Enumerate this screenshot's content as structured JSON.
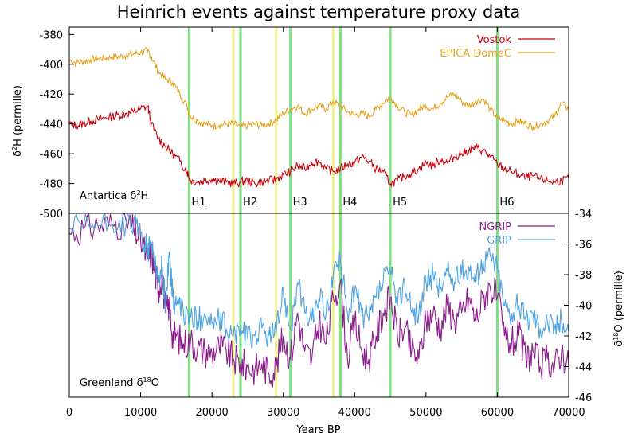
{
  "chart_data": {
    "type": "line",
    "title": "Heinrich events against temperature proxy data",
    "xlabel": "Years BP",
    "xlim": [
      0,
      70000
    ],
    "xticks": [
      0,
      10000,
      20000,
      30000,
      40000,
      50000,
      60000,
      70000
    ],
    "panels": [
      {
        "label_text": "Antartica δ",
        "label_sup": "2",
        "label_suffix": "H",
        "ylabel_sup": "2",
        "ylabel_text": "H (permille)",
        "ylabel_prefix": "δ",
        "ylim": [
          -500,
          -375
        ],
        "yticks": [
          -500,
          -480,
          -460,
          -440,
          -420,
          -400,
          -380
        ],
        "legend_position": "top-right",
        "series": [
          {
            "name": "Vostok",
            "color": "#c8000a",
            "x": [
              0,
              1000,
              2000,
              3000,
              4000,
              5000,
              6000,
              7000,
              8000,
              9000,
              10000,
              11000,
              11500,
              12500,
              13500,
              14500,
              15500,
              16500,
              17000,
              18000,
              19000,
              20000,
              21000,
              22000,
              23000,
              24000,
              25000,
              26000,
              27000,
              28000,
              29000,
              30000,
              31000,
              32000,
              33000,
              34000,
              35000,
              36000,
              37000,
              38000,
              39000,
              40000,
              41000,
              42000,
              43000,
              44000,
              45000,
              46000,
              47000,
              48000,
              49000,
              50000,
              51000,
              52000,
              53000,
              54000,
              55000,
              56000,
              57000,
              58000,
              59000,
              60000,
              61000,
              62000,
              63000,
              64000,
              65000,
              66000,
              67000,
              68000,
              69000,
              70000
            ],
            "y": [
              -440,
              -441,
              -440,
              -438,
              -437,
              -436,
              -435,
              -434,
              -433,
              -432,
              -430,
              -428,
              -440,
              -450,
              -455,
              -460,
              -465,
              -472,
              -478,
              -479,
              -478,
              -477,
              -478,
              -479,
              -480,
              -479,
              -478,
              -480,
              -479,
              -478,
              -477,
              -474,
              -472,
              -468,
              -470,
              -466,
              -465,
              -470,
              -472,
              -470,
              -467,
              -466,
              -462,
              -465,
              -470,
              -472,
              -480,
              -478,
              -475,
              -473,
              -470,
              -466,
              -468,
              -464,
              -466,
              -462,
              -460,
              -458,
              -456,
              -458,
              -462,
              -467,
              -470,
              -472,
              -474,
              -476,
              -475,
              -477,
              -478,
              -479,
              -478,
              -477
            ]
          },
          {
            "name": "EPICA DomeC",
            "color": "#e8a21a",
            "x": [
              0,
              1000,
              2000,
              3000,
              4000,
              5000,
              6000,
              7000,
              8000,
              9000,
              10000,
              11000,
              11500,
              12500,
              13500,
              14500,
              15500,
              16500,
              17000,
              18000,
              19000,
              20000,
              21000,
              22000,
              23000,
              24000,
              25000,
              26000,
              27000,
              28000,
              29000,
              30000,
              31000,
              32000,
              33000,
              34000,
              35000,
              36000,
              37000,
              38000,
              39000,
              40000,
              41000,
              42000,
              43000,
              44000,
              45000,
              46000,
              47000,
              48000,
              49000,
              50000,
              51000,
              52000,
              53000,
              54000,
              55000,
              56000,
              57000,
              58000,
              59000,
              60000,
              61000,
              62000,
              63000,
              64000,
              65000,
              66000,
              67000,
              68000,
              69000,
              70000
            ],
            "y": [
              -397,
              -399,
              -398,
              -397,
              -396,
              -396,
              -395,
              -395,
              -394,
              -393,
              -392,
              -391,
              -395,
              -405,
              -410,
              -412,
              -420,
              -428,
              -435,
              -438,
              -440,
              -441,
              -441,
              -440,
              -440,
              -442,
              -441,
              -440,
              -441,
              -440,
              -437,
              -433,
              -430,
              -428,
              -433,
              -430,
              -428,
              -430,
              -425,
              -428,
              -432,
              -434,
              -433,
              -435,
              -430,
              -426,
              -422,
              -428,
              -432,
              -434,
              -430,
              -428,
              -430,
              -426,
              -422,
              -420,
              -425,
              -428,
              -425,
              -423,
              -430,
              -436,
              -438,
              -440,
              -438,
              -440,
              -442,
              -440,
              -438,
              -435,
              -426,
              -430
            ]
          }
        ],
        "markers": [
          "H1",
          "H2",
          "H3",
          "H4",
          "H5",
          "H6"
        ]
      },
      {
        "label_text": "Greenland δ",
        "label_sup": "18",
        "label_suffix": "O",
        "ylabel_prefix": "δ",
        "ylabel_sup": "18",
        "ylabel_text": "O (permille)",
        "ylim": [
          -46,
          -34
        ],
        "yticks": [
          -46,
          -44,
          -42,
          -40,
          -38,
          -36,
          -34
        ],
        "legend_position": "top-right",
        "series": [
          {
            "name": "NGRIP",
            "color": "#8b1a8b",
            "x": [
              0,
              2000,
              4000,
              6000,
              8000,
              9000,
              10000,
              11000,
              11500,
              12000,
              12500,
              13000,
              13500,
              14000,
              14500,
              15000,
              16000,
              17000,
              18000,
              19000,
              20000,
              21000,
              22000,
              23000,
              24000,
              25000,
              26000,
              27000,
              28000,
              29000,
              30000,
              31000,
              32000,
              33000,
              34000,
              35000,
              36000,
              37000,
              38000,
              39000,
              40000,
              41000,
              42000,
              43000,
              44000,
              45000,
              46000,
              47000,
              48000,
              49000,
              50000,
              51000,
              52000,
              53000,
              54000,
              55000,
              56000,
              57000,
              58000,
              59000,
              60000,
              61000,
              62000,
              63000,
              64000,
              65000,
              66000,
              67000,
              68000,
              69000,
              70000
            ],
            "y": [
              -35.3,
              -35.0,
              -34.8,
              -34.7,
              -34.6,
              -35.0,
              -35.8,
              -37.0,
              -36.5,
              -37.8,
              -39.0,
              -38.0,
              -40.5,
              -40.0,
              -42.0,
              -42.0,
              -42.5,
              -42.3,
              -42.8,
              -43.0,
              -43.1,
              -42.7,
              -43.0,
              -43.5,
              -43.8,
              -44.0,
              -44.2,
              -43.8,
              -44.5,
              -44.0,
              -42.0,
              -43.5,
              -40.5,
              -43.0,
              -43.5,
              -41.0,
              -42.5,
              -39.5,
              -38.5,
              -43.5,
              -41.0,
              -43.0,
              -43.5,
              -42.0,
              -40.5,
              -39.5,
              -42.0,
              -41.5,
              -43.0,
              -43.5,
              -41.0,
              -40.5,
              -41.5,
              -40.0,
              -41.0,
              -40.5,
              -39.5,
              -41.0,
              -39.5,
              -38.8,
              -39.5,
              -42.0,
              -42.5,
              -42.0,
              -43.5,
              -43.0,
              -44.0,
              -43.5,
              -44.0,
              -43.0,
              -44.0
            ]
          },
          {
            "name": "GRIP",
            "color": "#4fa3e0",
            "x": [
              0,
              2000,
              4000,
              6000,
              8000,
              9000,
              10000,
              11000,
              11500,
              12000,
              12500,
              13000,
              13500,
              14000,
              14500,
              15000,
              16000,
              17000,
              18000,
              19000,
              20000,
              21000,
              22000,
              23000,
              24000,
              25000,
              26000,
              27000,
              28000,
              29000,
              30000,
              31000,
              32000,
              33000,
              34000,
              35000,
              36000,
              37000,
              38000,
              39000,
              40000,
              41000,
              42000,
              43000,
              44000,
              45000,
              46000,
              47000,
              48000,
              49000,
              50000,
              51000,
              52000,
              53000,
              54000,
              55000,
              56000,
              57000,
              58000,
              59000,
              60000,
              61000,
              62000,
              63000,
              64000,
              65000,
              66000,
              67000,
              68000,
              69000,
              70000
            ],
            "y": [
              -35.0,
              -34.9,
              -34.8,
              -34.7,
              -34.6,
              -34.8,
              -35.3,
              -36.5,
              -36.0,
              -37.0,
              -38.5,
              -37.5,
              -40.0,
              -36.5,
              -39.5,
              -40.0,
              -40.5,
              -40.8,
              -41.0,
              -40.5,
              -41.2,
              -41.0,
              -41.5,
              -42.0,
              -41.5,
              -42.2,
              -42.0,
              -41.5,
              -42.0,
              -41.8,
              -39.0,
              -41.5,
              -38.5,
              -40.5,
              -41.0,
              -39.5,
              -40.5,
              -38.0,
              -37.2,
              -40.5,
              -39.0,
              -40.5,
              -41.0,
              -39.5,
              -38.5,
              -37.8,
              -40.0,
              -38.5,
              -40.5,
              -40.5,
              -38.5,
              -38.0,
              -39.0,
              -37.8,
              -38.5,
              -38.0,
              -37.5,
              -38.5,
              -37.0,
              -36.8,
              -37.5,
              -40.0,
              -40.5,
              -40.0,
              -41.0,
              -40.5,
              -41.5,
              -41.0,
              -41.5,
              -41.0,
              -41.8
            ]
          }
        ]
      }
    ],
    "heinrich_events": [
      {
        "label": "H1",
        "x": 16800,
        "color": "#7fe07f"
      },
      {
        "label": "H2",
        "x": 24000,
        "color": "#7fe07f"
      },
      {
        "label": "H3",
        "x": 31000,
        "color": "#7fe07f"
      },
      {
        "label": "H4",
        "x": 38000,
        "color": "#7fe07f"
      },
      {
        "label": "H5",
        "x": 45000,
        "color": "#7fe07f"
      },
      {
        "label": "H6",
        "x": 60000,
        "color": "#7fe07f"
      }
    ],
    "other_events": [
      {
        "x": 23000,
        "color": "#f0f08a"
      },
      {
        "x": 29000,
        "color": "#f0f08a"
      },
      {
        "x": 37000,
        "color": "#f0f08a"
      }
    ]
  }
}
